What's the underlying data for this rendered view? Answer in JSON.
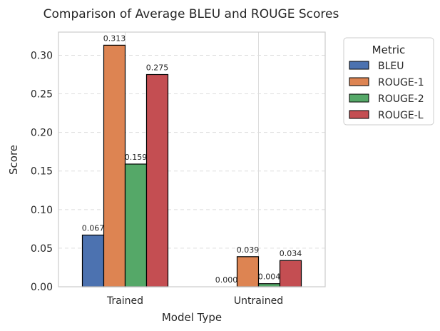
{
  "chart_data": {
    "type": "bar",
    "title": "Comparison of Average BLEU and ROUGE Scores",
    "xlabel": "Model Type",
    "ylabel": "Score",
    "categories": [
      "Trained",
      "Untrained"
    ],
    "series": [
      {
        "name": "BLEU",
        "values": [
          0.067,
          0.0
        ],
        "labels": [
          "0.067",
          "0.000"
        ],
        "color": "#4c72b0"
      },
      {
        "name": "ROUGE-1",
        "values": [
          0.313,
          0.039
        ],
        "labels": [
          "0.313",
          "0.039"
        ],
        "color": "#dd8452"
      },
      {
        "name": "ROUGE-2",
        "values": [
          0.159,
          0.004
        ],
        "labels": [
          "0.159",
          "0.004"
        ],
        "color": "#55a868"
      },
      {
        "name": "ROUGE-L",
        "values": [
          0.275,
          0.034
        ],
        "labels": [
          "0.275",
          "0.034"
        ],
        "color": "#c44e52"
      }
    ],
    "ylim": [
      0,
      0.33
    ],
    "yticks": [
      "0.00",
      "0.05",
      "0.10",
      "0.15",
      "0.20",
      "0.25",
      "0.30"
    ],
    "legend": {
      "title": "Metric",
      "placement": "outside-top-right"
    },
    "grid": {
      "y": true,
      "y_style": "dashed",
      "x": true
    },
    "colors": {
      "bar_edge": "#000000",
      "grid": "#dddddd",
      "spine": "#cccccc"
    }
  }
}
